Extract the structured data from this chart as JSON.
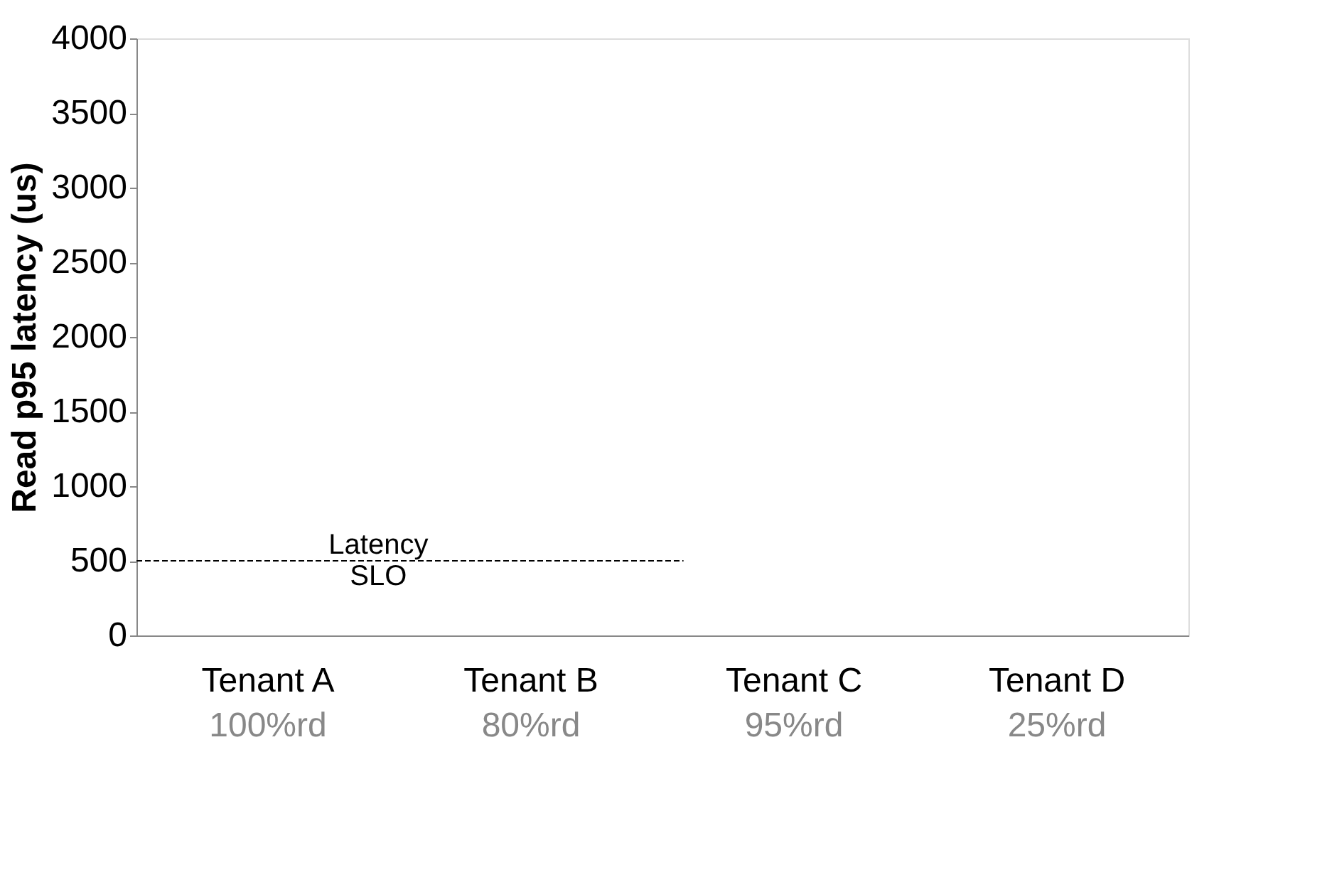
{
  "chart_data": {
    "type": "bar",
    "categories": [
      "Tenant A",
      "Tenant B",
      "Tenant C",
      "Tenant D"
    ],
    "values": [
      null,
      null,
      null,
      null
    ],
    "ylabel": "Read p95 latency (us)",
    "ylim": [
      0,
      4000
    ],
    "yticks": [
      0,
      500,
      1000,
      1500,
      2000,
      2500,
      3000,
      3500,
      4000
    ],
    "grid": false,
    "ref_lines": [
      {
        "axis": "y",
        "value": 500,
        "label": "Latency SLO",
        "color": "#000000",
        "line_style": "dashed"
      }
    ],
    "annotations": [
      "100%rd",
      "80%rd",
      "95%rd",
      "25%rd"
    ]
  }
}
